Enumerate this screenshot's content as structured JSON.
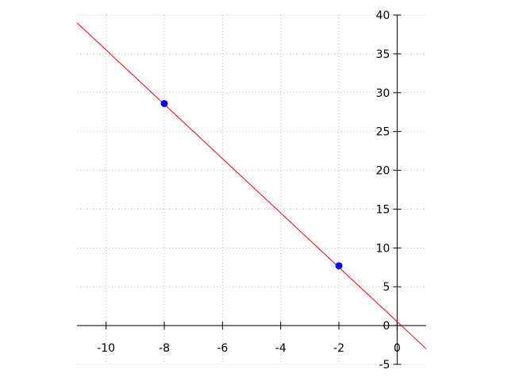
{
  "chart_data": {
    "type": "scatter",
    "title": "",
    "xlabel": "",
    "ylabel": "",
    "xlim": [
      -11,
      1
    ],
    "ylim": [
      -5,
      40
    ],
    "grid": true,
    "x_ticks": [
      -10,
      -8,
      -6,
      -4,
      -2,
      0
    ],
    "y_ticks": [
      -5,
      0,
      5,
      10,
      15,
      20,
      25,
      30,
      35,
      40
    ],
    "points": [
      {
        "x": -8,
        "y": 28.6
      },
      {
        "x": -2,
        "y": 7.7
      }
    ],
    "line": {
      "slope": -3.5,
      "intercept": 0.5
    },
    "colors": {
      "points": "#0000ff",
      "line": "#ff0000",
      "grid": "#bbbbbb"
    }
  }
}
